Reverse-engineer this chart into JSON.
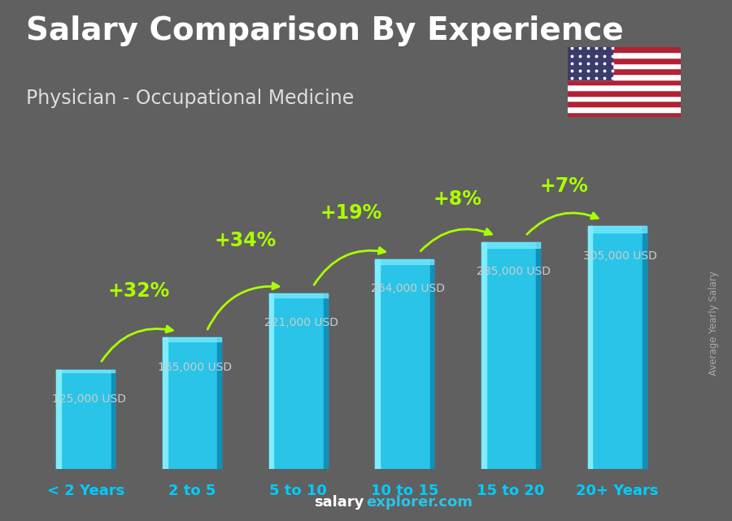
{
  "title": "Salary Comparison By Experience",
  "subtitle": "Physician - Occupational Medicine",
  "ylabel": "Average Yearly Salary",
  "categories": [
    "< 2 Years",
    "2 to 5",
    "5 to 10",
    "10 to 15",
    "15 to 20",
    "20+ Years"
  ],
  "values": [
    125000,
    165000,
    221000,
    264000,
    285000,
    305000
  ],
  "value_labels": [
    "125,000 USD",
    "165,000 USD",
    "221,000 USD",
    "264,000 USD",
    "285,000 USD",
    "305,000 USD"
  ],
  "pct_changes": [
    "+32%",
    "+34%",
    "+19%",
    "+8%",
    "+7%"
  ],
  "bar_color_main": "#29C4E8",
  "bar_color_light": "#7EEDFF",
  "bar_color_dark": "#1090BB",
  "background_color": "#606060",
  "title_color": "#FFFFFF",
  "subtitle_color": "#DDDDDD",
  "category_color": "#00CCFF",
  "value_label_color": "#CCCCCC",
  "pct_color": "#AAFF00",
  "arrow_color": "#AAFF00",
  "watermark_color1": "#FFFFFF",
  "watermark_color2": "#29C4E8",
  "ylabel_color": "#AAAAAA",
  "ylim": [
    0,
    380000
  ],
  "title_fontsize": 28,
  "subtitle_fontsize": 17,
  "category_fontsize": 13,
  "value_fontsize": 10,
  "pct_fontsize": 17
}
